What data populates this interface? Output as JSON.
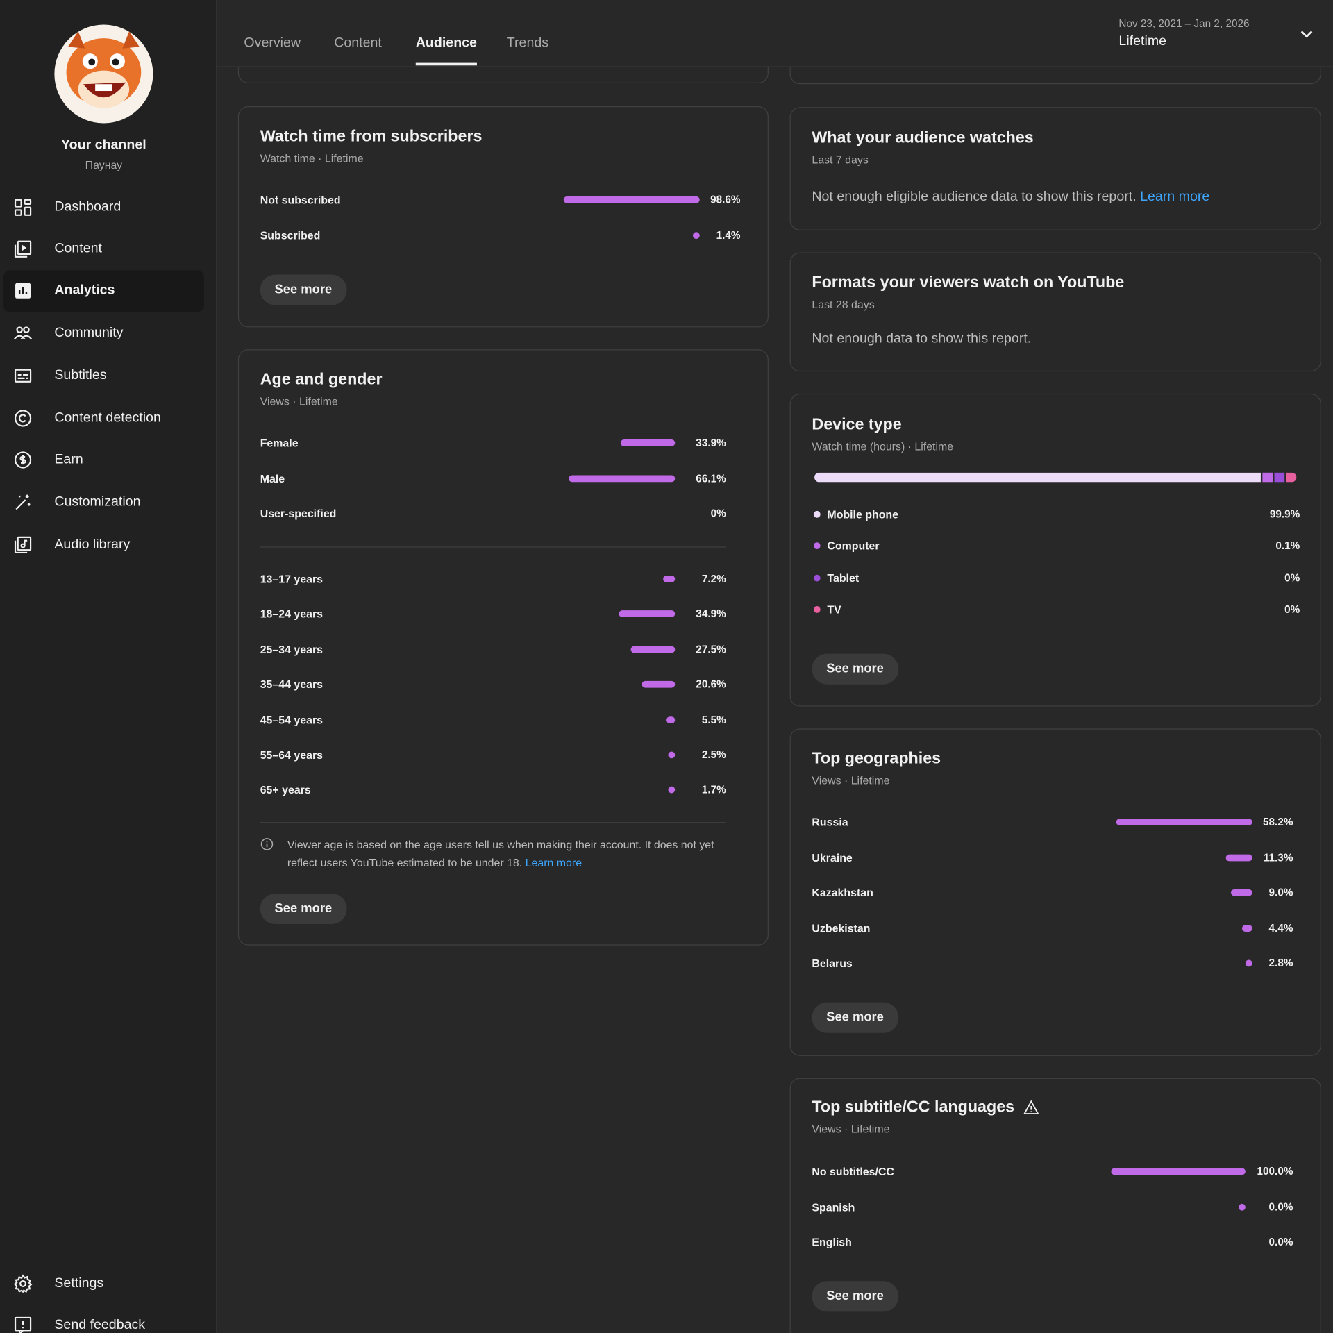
{
  "sidebar": {
    "channel_title": "Your channel",
    "channel_handle": "Паунау",
    "nav": [
      "Dashboard",
      "Content",
      "Analytics",
      "Community",
      "Subtitles",
      "Content detection",
      "Earn",
      "Customization",
      "Audio library"
    ],
    "footer_nav": [
      "Settings",
      "Send feedback"
    ]
  },
  "tabs": [
    "Overview",
    "Content",
    "Audience",
    "Trends"
  ],
  "date_range": {
    "dates": "Nov 23, 2021 – Jan 2, 2026",
    "period": "Lifetime"
  },
  "cards": {
    "subscribers": {
      "title": "Watch time from subscribers",
      "subtitle": "Watch time · Lifetime",
      "rows": [
        {
          "label": "Not subscribed",
          "value": 98.6,
          "value_label": "98.6%"
        },
        {
          "label": "Subscribed",
          "value": 1.4,
          "value_label": "1.4%"
        }
      ],
      "button": "See more"
    },
    "age_gender": {
      "title": "Age and gender",
      "subtitle": "Views · Lifetime",
      "gender": [
        {
          "label": "Female",
          "value": 33.9,
          "value_label": "33.9%"
        },
        {
          "label": "Male",
          "value": 66.1,
          "value_label": "66.1%"
        },
        {
          "label": "User-specified",
          "value": 0,
          "value_label": "0%"
        }
      ],
      "ages": [
        {
          "label": "13–17 years",
          "value": 7.2,
          "value_label": "7.2%"
        },
        {
          "label": "18–24 years",
          "value": 34.9,
          "value_label": "34.9%"
        },
        {
          "label": "25–34 years",
          "value": 27.5,
          "value_label": "27.5%"
        },
        {
          "label": "35–44 years",
          "value": 20.6,
          "value_label": "20.6%"
        },
        {
          "label": "45–54 years",
          "value": 5.5,
          "value_label": "5.5%"
        },
        {
          "label": "55–64 years",
          "value": 2.5,
          "value_label": "2.5%"
        },
        {
          "label": "65+ years",
          "value": 1.7,
          "value_label": "1.7%"
        }
      ],
      "note": "Viewer age is based on the age users tell us when making their account. It does not yet reflect users YouTube estimated to be under 18.",
      "note_link": "Learn more",
      "button": "See more"
    },
    "audience_watches": {
      "title": "What your audience watches",
      "subtitle": "Last 7 days",
      "message": "Not enough eligible audience data to show this report.",
      "link": "Learn more"
    },
    "formats": {
      "title": "Formats your viewers watch on YouTube",
      "subtitle": "Last 28 days",
      "message": "Not enough data to show this report."
    },
    "device": {
      "title": "Device type",
      "subtitle": "Watch time (hours) · Lifetime",
      "rows": [
        {
          "label": "Mobile phone",
          "value": 99.9,
          "value_label": "99.9%",
          "color": "#ecdcf7"
        },
        {
          "label": "Computer",
          "value": 0.1,
          "value_label": "0.1%",
          "color": "#c06ae8"
        },
        {
          "label": "Tablet",
          "value": 0,
          "value_label": "0%",
          "color": "#9a4fd8"
        },
        {
          "label": "TV",
          "value": 0,
          "value_label": "0%",
          "color": "#e8609f"
        }
      ],
      "button": "See more"
    },
    "geographies": {
      "title": "Top geographies",
      "subtitle": "Views · Lifetime",
      "rows": [
        {
          "label": "Russia",
          "value": 58.2,
          "value_label": "58.2%"
        },
        {
          "label": "Ukraine",
          "value": 11.3,
          "value_label": "11.3%"
        },
        {
          "label": "Kazakhstan",
          "value": 9.0,
          "value_label": "9.0%"
        },
        {
          "label": "Uzbekistan",
          "value": 4.4,
          "value_label": "4.4%"
        },
        {
          "label": "Belarus",
          "value": 2.8,
          "value_label": "2.8%"
        }
      ],
      "button": "See more"
    },
    "languages": {
      "title": "Top subtitle/CC languages",
      "subtitle": "Views · Lifetime",
      "rows": [
        {
          "label": "No subtitles/CC",
          "value": 100.0,
          "value_label": "100.0%"
        },
        {
          "label": "Spanish",
          "value": 0.04,
          "value_label": "0.0%"
        },
        {
          "label": "English",
          "value": 0,
          "value_label": "0.0%"
        }
      ],
      "button": "See more"
    }
  }
}
